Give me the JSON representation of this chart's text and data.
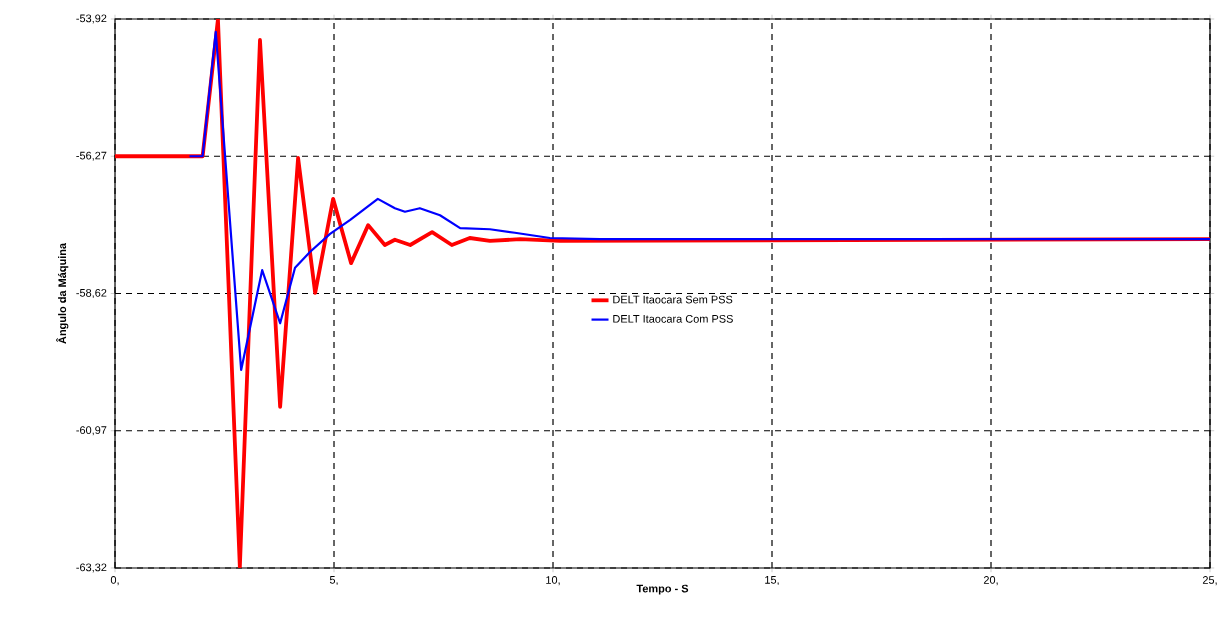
{
  "chart_data": {
    "type": "line",
    "xlabel": "Tempo - S",
    "ylabel": "Ângulo da Máquina",
    "xlim": [
      0,
      25
    ],
    "ylim": [
      -63.32,
      -53.92
    ],
    "xticks": [
      {
        "value": 0,
        "label": "0,"
      },
      {
        "value": 5,
        "label": "5,"
      },
      {
        "value": 10,
        "label": "10,"
      },
      {
        "value": 15,
        "label": "15,"
      },
      {
        "value": 20,
        "label": "20,"
      },
      {
        "value": 25,
        "label": "25,"
      }
    ],
    "yticks": [
      {
        "value": -63.32,
        "label": "-63,32"
      },
      {
        "value": -60.97,
        "label": "-60,97"
      },
      {
        "value": -58.62,
        "label": "-58,62"
      },
      {
        "value": -56.27,
        "label": "-56,27"
      },
      {
        "value": -53.92,
        "label": "-53,92"
      }
    ],
    "grid": true,
    "legend": "center",
    "marker": "none",
    "line_style": "solid",
    "series": [
      {
        "name": "DELT  Itaocara Sem PSS",
        "color": "#ff0000",
        "x": [
          0,
          2.0,
          2.35,
          2.85,
          3.31,
          3.77,
          4.18,
          4.57,
          4.98,
          5.39,
          5.78,
          6.16,
          6.39,
          6.74,
          7.24,
          7.69,
          8.1,
          8.56,
          9.25,
          10.16,
          25
        ],
        "values": [
          -56.27,
          -56.27,
          -53.93,
          -63.3,
          -54.28,
          -60.56,
          -56.3,
          -58.61,
          -57.0,
          -58.1,
          -57.45,
          -57.79,
          -57.7,
          -57.79,
          -57.57,
          -57.79,
          -57.67,
          -57.72,
          -57.69,
          -57.72,
          -57.69
        ]
      },
      {
        "name": "DELT  Itaocara Com PSS",
        "color": "#0000ff",
        "x": [
          1.7,
          2.0,
          2.3,
          2.88,
          3.36,
          3.77,
          4.11,
          4.45,
          4.91,
          5.37,
          6.0,
          6.39,
          6.62,
          6.96,
          7.42,
          7.88,
          8.56,
          9.13,
          9.93,
          11.07,
          25
        ],
        "values": [
          -56.27,
          -56.27,
          -54.14,
          -59.93,
          -58.22,
          -59.13,
          -58.18,
          -57.91,
          -57.6,
          -57.36,
          -57.0,
          -57.16,
          -57.22,
          -57.16,
          -57.28,
          -57.5,
          -57.52,
          -57.58,
          -57.67,
          -57.69,
          -57.69
        ]
      }
    ]
  }
}
